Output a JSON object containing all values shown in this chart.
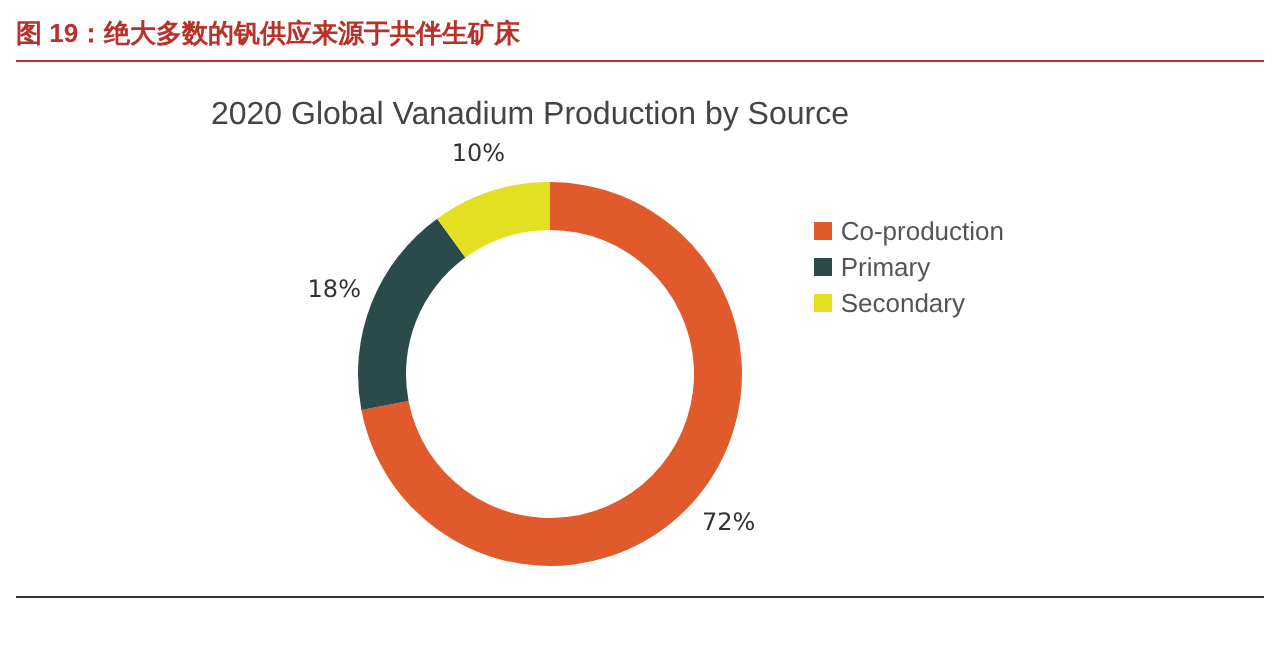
{
  "chart_data": {
    "type": "donut",
    "title": "图 19：绝大多数的钒供应来源于共伴生矿床",
    "subtitle": "2020 Global Vanadium Production by Source",
    "categories": [
      "Co-production",
      "Primary",
      "Secondary"
    ],
    "values": [
      72,
      18,
      10
    ],
    "colors": [
      "#e05a2b",
      "#2b4a4a",
      "#e3df22"
    ],
    "value_labels": [
      "72%",
      "18%",
      "10%"
    ],
    "legend": "right"
  }
}
